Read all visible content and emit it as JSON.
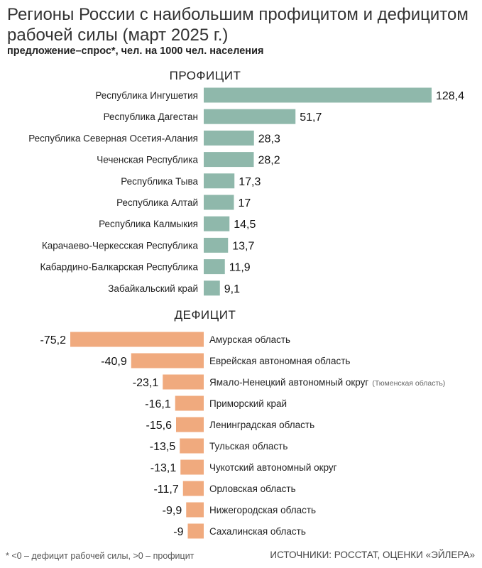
{
  "title": "Регионы России с наибольшим профицитом и дефицитом рабочей силы (март 2025 г.)",
  "subtitle": "предложение–спрос*, чел. на 1000 чел. населения",
  "footnote": "* <0 – дефицит рабочей силы, >0 – профицит",
  "source": "ИСТОЧНИКИ: РОССТАТ, ОЦЕНКИ «ЭЙЛЕРА»",
  "colors": {
    "surplus": "#8fb8ab",
    "deficit": "#f0aa7e"
  },
  "chart_data": {
    "type": "bar",
    "orientation": "horizontal",
    "groups": [
      {
        "heading": "ПРОФИЦИТ",
        "categories": [
          "Республика Ингушетия",
          "Республика Дагестан",
          "Республика Северная Осетия-Алания",
          "Чеченская Республика",
          "Республика Тыва",
          "Республика Алтай",
          "Республика Калмыкия",
          "Карачаево-Черкесская Республика",
          "Кабардино-Балкарская Республика",
          "Забайкальский край"
        ],
        "values": [
          128.4,
          51.7,
          28.3,
          28.2,
          17.3,
          17,
          14.5,
          13.7,
          11.9,
          9.1
        ],
        "value_labels": [
          "128,4",
          "51,7",
          "28,3",
          "28,2",
          "17,3",
          "17",
          "14,5",
          "13,7",
          "11,9",
          "9,1"
        ]
      },
      {
        "heading": "ДЕФИЦИТ",
        "categories": [
          "Амурская область",
          "Еврейская автономная область",
          "Ямало-Ненецкий автономный округ",
          "Приморский край",
          "Ленинградская область",
          "Тульская область",
          "Чукотский автономный округ",
          "Орловская область",
          "Нижегородская область",
          "Сахалинская область"
        ],
        "notes": [
          "",
          "",
          "(Тюменская область)",
          "",
          "",
          "",
          "",
          "",
          "",
          ""
        ],
        "values": [
          -75.2,
          -40.9,
          -23.1,
          -16.1,
          -15.6,
          -13.5,
          -13.1,
          -11.7,
          -9.9,
          -9
        ],
        "value_labels": [
          "-75,2",
          "-40,9",
          "-23,1",
          "-16,1",
          "-15,6",
          "-13,5",
          "-13,1",
          "-11,7",
          "-9,9",
          "-9"
        ]
      }
    ]
  }
}
